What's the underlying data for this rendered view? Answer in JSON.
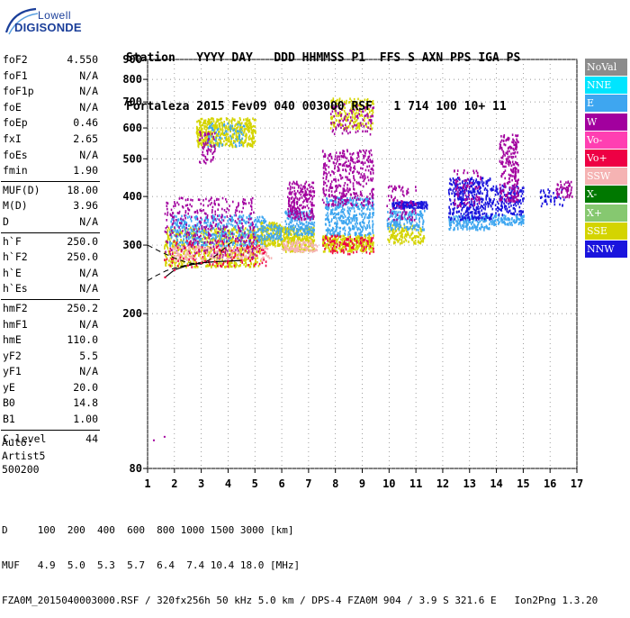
{
  "logo": {
    "line1": "Lowell",
    "line2": "DIGISONDE"
  },
  "header": {
    "labels": "Station   YYYY DAY   DDD HHMMSS P1  FFS S AXN PPS IGA PS",
    "values": "Fortaleza 2015 Fev09 040 003000 RSF   1 714 100 10+ 11"
  },
  "params": [
    {
      "label": "foF2",
      "value": "4.550"
    },
    {
      "label": "foF1",
      "value": "N/A"
    },
    {
      "label": "foF1p",
      "value": "N/A"
    },
    {
      "label": "foE",
      "value": "N/A"
    },
    {
      "label": "foEp",
      "value": "0.46"
    },
    {
      "label": "fxI",
      "value": "2.65"
    },
    {
      "label": "foEs",
      "value": "N/A"
    },
    {
      "label": "fmin",
      "value": "1.90"
    },
    {
      "label": "MUF(D)",
      "value": "18.00",
      "sep": true
    },
    {
      "label": "M(D)",
      "value": "3.96"
    },
    {
      "label": "D",
      "value": "N/A"
    },
    {
      "label": "h`F",
      "value": "250.0",
      "sep": true
    },
    {
      "label": "h`F2",
      "value": "250.0"
    },
    {
      "label": "h`E",
      "value": "N/A"
    },
    {
      "label": "h`Es",
      "value": "N/A"
    },
    {
      "label": "hmF2",
      "value": "250.2",
      "sep": true
    },
    {
      "label": "hmF1",
      "value": "N/A"
    },
    {
      "label": "hmE",
      "value": "110.0"
    },
    {
      "label": "yF2",
      "value": "5.5"
    },
    {
      "label": "yF1",
      "value": "N/A"
    },
    {
      "label": "yE",
      "value": "20.0"
    },
    {
      "label": "B0",
      "value": "14.8"
    },
    {
      "label": "B1",
      "value": "1.00"
    },
    {
      "label": "C-level",
      "value": "44",
      "sep": true
    }
  ],
  "auto": {
    "line1": "Auto:",
    "line2": "Artist5",
    "line3": "500200"
  },
  "footer": {
    "line1": "D     100  200  400  600  800 1000 1500 3000 [km]",
    "line2": "MUF   4.9  5.0  5.3  5.7  6.4  7.4 10.4 18.0 [MHz]",
    "line3": "FZA0M_2015040003000.RSF / 320fx256h 50 kHz 5.0 km / DPS-4 FZA0M 904 / 3.9 S 321.6 E   Ion2Png 1.3.20"
  },
  "legend": [
    {
      "label": "NoVal",
      "color": "#8c8c8c"
    },
    {
      "label": "NNE",
      "color": "#00e5ff"
    },
    {
      "label": "E",
      "color": "#3ea6f0"
    },
    {
      "label": "W",
      "color": "#a2009e"
    },
    {
      "label": "Vo-",
      "color": "#ff3fb2"
    },
    {
      "label": "Vo+",
      "color": "#ee0044"
    },
    {
      "label": "SSW",
      "color": "#f5b3b3"
    },
    {
      "label": "X-",
      "color": "#007800"
    },
    {
      "label": "X+",
      "color": "#86c870"
    },
    {
      "label": "SSE",
      "color": "#d4d400"
    },
    {
      "label": "NNW",
      "color": "#1a14dd"
    }
  ],
  "chart_data": {
    "type": "scatter",
    "x_label": "",
    "y_label": "",
    "xlim": [
      1,
      17
    ],
    "ylim": [
      80,
      900
    ],
    "x_ticks": [
      1,
      2,
      3,
      4,
      5,
      6,
      7,
      8,
      9,
      10,
      11,
      12,
      13,
      14,
      15,
      16,
      17
    ],
    "y_ticks": [
      80,
      200,
      300,
      400,
      500,
      600,
      700,
      800,
      900
    ],
    "y_scale": "log",
    "grid": true,
    "trace_points": [
      {
        "x": 1.65,
        "y": 248
      },
      {
        "x": 2.0,
        "y": 259
      },
      {
        "x": 2.5,
        "y": 266
      },
      {
        "x": 3.0,
        "y": 270
      },
      {
        "x": 3.5,
        "y": 272
      },
      {
        "x": 4.0,
        "y": 273
      },
      {
        "x": 4.5,
        "y": 274
      }
    ],
    "dashed_curves": [
      {
        "name": "",
        "points": [
          {
            "x": 1.0,
            "y": 300
          },
          {
            "x": 1.5,
            "y": 288
          },
          {
            "x": 2.0,
            "y": 278
          },
          {
            "x": 2.5,
            "y": 270
          },
          {
            "x": 3.0,
            "y": 268
          },
          {
            "x": 3.3,
            "y": 275
          },
          {
            "x": 3.6,
            "y": 284
          },
          {
            "x": 3.9,
            "y": 296
          },
          {
            "x": 4.2,
            "y": 308
          }
        ]
      },
      {
        "name": "",
        "points": [
          {
            "x": 1.0,
            "y": 243
          },
          {
            "x": 1.3,
            "y": 250
          },
          {
            "x": 1.7,
            "y": 258
          },
          {
            "x": 2.2,
            "y": 264
          },
          {
            "x": 2.7,
            "y": 269
          },
          {
            "x": 3.2,
            "y": 272
          }
        ]
      }
    ],
    "echo_clusters": [
      {
        "color": "#d4d400",
        "xmin": 1.6,
        "xmax": 5.2,
        "ymin": 265,
        "ymax": 335,
        "n": 700
      },
      {
        "color": "#3ea6f0",
        "xmin": 1.8,
        "xmax": 5.4,
        "ymin": 300,
        "ymax": 360,
        "n": 450
      },
      {
        "color": "#a2009e",
        "xmin": 1.6,
        "xmax": 5.0,
        "ymin": 280,
        "ymax": 400,
        "n": 360
      },
      {
        "color": "#f5b3b3",
        "xmin": 1.8,
        "xmax": 5.6,
        "ymin": 275,
        "ymax": 300,
        "n": 180
      },
      {
        "color": "#ee0044",
        "xmin": 1.6,
        "xmax": 5.4,
        "ymin": 265,
        "ymax": 310,
        "n": 120
      },
      {
        "color": "#d4d400",
        "xmin": 2.8,
        "xmax": 5.0,
        "ymin": 540,
        "ymax": 640,
        "n": 500
      },
      {
        "color": "#3ea6f0",
        "xmin": 3.2,
        "xmax": 4.6,
        "ymin": 540,
        "ymax": 620,
        "n": 80
      },
      {
        "color": "#a2009e",
        "xmin": 2.9,
        "xmax": 3.5,
        "ymin": 490,
        "ymax": 590,
        "n": 60
      },
      {
        "color": "#d4d400",
        "xmin": 5.2,
        "xmax": 6.0,
        "ymin": 300,
        "ymax": 345,
        "n": 160
      },
      {
        "color": "#3ea6f0",
        "xmin": 5.1,
        "xmax": 6.0,
        "ymin": 310,
        "ymax": 340,
        "n": 90
      },
      {
        "color": "#d4d400",
        "xmin": 6.0,
        "xmax": 7.2,
        "ymin": 290,
        "ymax": 335,
        "n": 300
      },
      {
        "color": "#3ea6f0",
        "xmin": 6.1,
        "xmax": 7.2,
        "ymin": 320,
        "ymax": 370,
        "n": 180
      },
      {
        "color": "#a2009e",
        "xmin": 6.2,
        "xmax": 7.2,
        "ymin": 350,
        "ymax": 440,
        "n": 220
      },
      {
        "color": "#f5b3b3",
        "xmin": 6.0,
        "xmax": 7.3,
        "ymin": 290,
        "ymax": 310,
        "n": 100
      },
      {
        "color": "#d4d400",
        "xmin": 7.5,
        "xmax": 9.4,
        "ymin": 290,
        "ymax": 320,
        "n": 300
      },
      {
        "color": "#3ea6f0",
        "xmin": 7.6,
        "xmax": 9.4,
        "ymin": 320,
        "ymax": 400,
        "n": 380
      },
      {
        "color": "#a2009e",
        "xmin": 7.5,
        "xmax": 9.4,
        "ymin": 380,
        "ymax": 530,
        "n": 360
      },
      {
        "color": "#d4d400",
        "xmin": 7.8,
        "xmax": 9.4,
        "ymin": 600,
        "ymax": 720,
        "n": 200
      },
      {
        "color": "#a2009e",
        "xmin": 7.8,
        "xmax": 9.4,
        "ymin": 580,
        "ymax": 700,
        "n": 100
      },
      {
        "color": "#ee0044",
        "xmin": 7.5,
        "xmax": 9.4,
        "ymin": 285,
        "ymax": 320,
        "n": 100
      },
      {
        "color": "#d4d400",
        "xmin": 9.9,
        "xmax": 11.3,
        "ymin": 305,
        "ymax": 340,
        "n": 150
      },
      {
        "color": "#1a14dd",
        "xmin": 10.1,
        "xmax": 11.4,
        "ymin": 375,
        "ymax": 390,
        "n": 160
      },
      {
        "color": "#3ea6f0",
        "xmin": 9.9,
        "xmax": 11.3,
        "ymin": 330,
        "ymax": 370,
        "n": 160
      },
      {
        "color": "#a2009e",
        "xmin": 9.9,
        "xmax": 11.0,
        "ymin": 350,
        "ymax": 430,
        "n": 80
      },
      {
        "color": "#3ea6f0",
        "xmin": 12.2,
        "xmax": 13.8,
        "ymin": 330,
        "ymax": 360,
        "n": 160
      },
      {
        "color": "#1a14dd",
        "xmin": 12.2,
        "xmax": 13.8,
        "ymin": 350,
        "ymax": 450,
        "n": 380
      },
      {
        "color": "#a2009e",
        "xmin": 12.4,
        "xmax": 13.4,
        "ymin": 380,
        "ymax": 470,
        "n": 80
      },
      {
        "color": "#3ea6f0",
        "xmin": 13.8,
        "xmax": 15.0,
        "ymin": 340,
        "ymax": 360,
        "n": 100
      },
      {
        "color": "#1a14dd",
        "xmin": 13.8,
        "xmax": 15.0,
        "ymin": 360,
        "ymax": 430,
        "n": 160
      },
      {
        "color": "#a2009e",
        "xmin": 14.1,
        "xmax": 14.8,
        "ymin": 390,
        "ymax": 580,
        "n": 240
      },
      {
        "color": "#1a14dd",
        "xmin": 15.6,
        "xmax": 16.5,
        "ymin": 380,
        "ymax": 420,
        "n": 40
      },
      {
        "color": "#a2009e",
        "xmin": 16.2,
        "xmax": 16.8,
        "ymin": 400,
        "ymax": 440,
        "n": 50
      }
    ]
  }
}
